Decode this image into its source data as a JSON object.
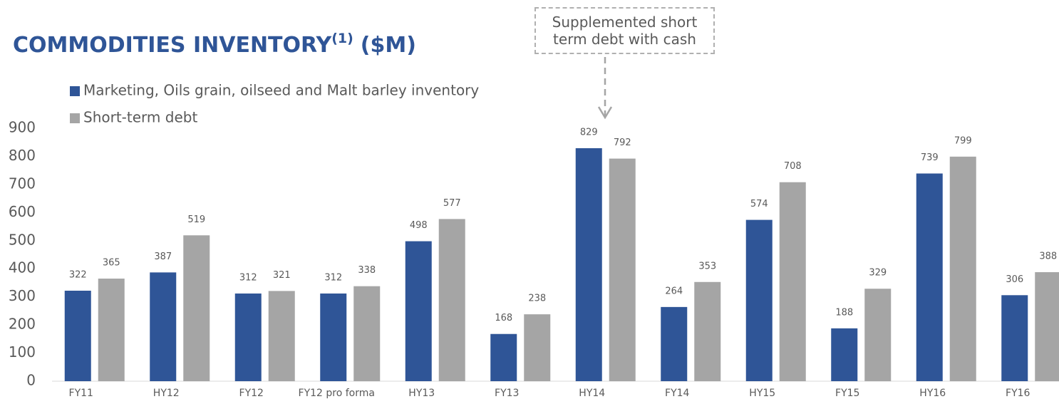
{
  "chart_data": {
    "type": "bar",
    "title": "COMMODITIES INVENTORY",
    "title_superscript": "(1)",
    "title_suffix": "($M)",
    "annotation": "Supplemented short term debt with cash",
    "categories": [
      "FY11",
      "HY12",
      "FY12",
      "FY12 pro forma",
      "HY13",
      "FY13",
      "HY14",
      "FY14",
      "HY15",
      "FY15",
      "HY16",
      "FY16"
    ],
    "series": [
      {
        "name": "Marketing, Oils grain, oilseed and Malt barley inventory",
        "color": "#2f5597",
        "values": [
          322,
          387,
          312,
          312,
          498,
          168,
          829,
          264,
          574,
          188,
          739,
          306
        ]
      },
      {
        "name": "Short-term debt",
        "color": "#a5a5a5",
        "values": [
          365,
          519,
          321,
          338,
          577,
          238,
          792,
          353,
          708,
          329,
          799,
          388
        ]
      }
    ],
    "ylim": [
      0,
      900
    ],
    "yticks": [
      0,
      100,
      200,
      300,
      400,
      500,
      600,
      700,
      800,
      900
    ],
    "grid": false,
    "legend": "top-left"
  }
}
